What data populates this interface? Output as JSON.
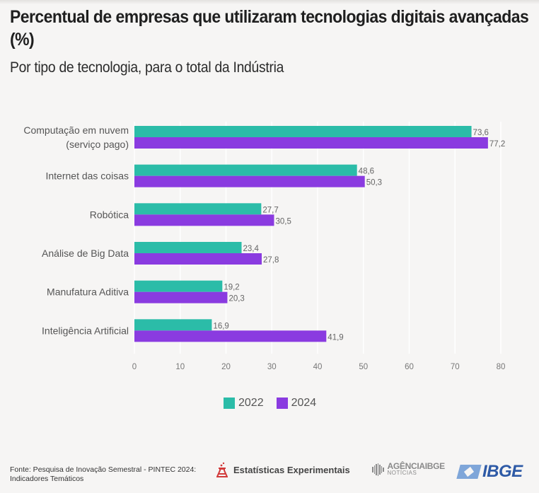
{
  "header": {
    "title": "Percentual de empresas que utilizaram tecnologias digitais avançadas (%)",
    "subtitle": "Por tipo de tecnologia, para o total da Indústria"
  },
  "colors": {
    "series_2022": "#2bbca8",
    "series_2024": "#8a3be0",
    "grid": "#ffffff"
  },
  "chart_data": {
    "type": "bar",
    "orientation": "horizontal",
    "title": "Percentual de empresas que utilizaram tecnologias digitais avançadas (%)",
    "subtitle": "Por tipo de tecnologia, para o total da Indústria",
    "xlabel": "",
    "ylabel": "",
    "categories": [
      [
        "Computação em nuvem",
        "(serviço pago)"
      ],
      [
        "Internet das coisas"
      ],
      [
        "Robótica"
      ],
      [
        "Análise de Big Data"
      ],
      [
        "Manufatura Aditiva"
      ],
      [
        "Inteligência Artificial"
      ]
    ],
    "series": [
      {
        "name": "2022",
        "color": "#2bbca8",
        "values": [
          73.6,
          48.6,
          27.7,
          23.4,
          19.2,
          16.9
        ],
        "labels": [
          "73,6",
          "48,6",
          "27,7",
          "23,4",
          "19,2",
          "16,9"
        ]
      },
      {
        "name": "2024",
        "color": "#8a3be0",
        "values": [
          77.2,
          50.3,
          30.5,
          27.8,
          20.3,
          41.9
        ],
        "labels": [
          "77,2",
          "50,3",
          "30,5",
          "27,8",
          "20,3",
          "41,9"
        ]
      }
    ],
    "xlim": [
      0,
      80
    ],
    "xticks": [
      0,
      10,
      20,
      30,
      40,
      50,
      60,
      70,
      80
    ],
    "grid": true,
    "legend": "bottom-center"
  },
  "legend": {
    "items": [
      {
        "label": "2022"
      },
      {
        "label": "2024"
      }
    ]
  },
  "footer": {
    "source_line1": "Fonte: Pesquisa de Inovação Semestral - PINTEC 2024:",
    "source_line2": "Indicadores Temáticos",
    "logo_ee": "Estatísticas Experimentais",
    "logo_agencia_1": "AGÊNCIAIBGE",
    "logo_agencia_2": "NOTÍCIAS",
    "logo_ibge": "IBGE"
  }
}
